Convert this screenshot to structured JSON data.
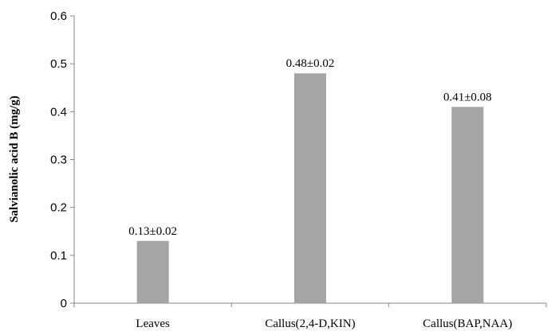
{
  "chart_data": {
    "type": "bar",
    "title": "",
    "xlabel": "",
    "ylabel": "Salvianolic acid B (mg/g)",
    "categories": [
      "Leaves",
      "Callus(2,4-D,KIN)",
      "Callus(BAP,NAA)"
    ],
    "values": [
      0.13,
      0.48,
      0.41
    ],
    "data_labels": [
      "0.13±0.02",
      "0.48±0.02",
      "0.41±0.08"
    ],
    "ylim": [
      0,
      0.6
    ],
    "yticks": [
      0,
      0.1,
      0.2,
      0.3,
      0.4,
      0.5,
      0.6
    ],
    "ytick_labels": [
      "0",
      "0.1",
      "0.2",
      "0.3",
      "0.4",
      "0.5",
      "0.6"
    ],
    "grid": false,
    "legend": "none",
    "bar_color": "#a5a5a5"
  }
}
